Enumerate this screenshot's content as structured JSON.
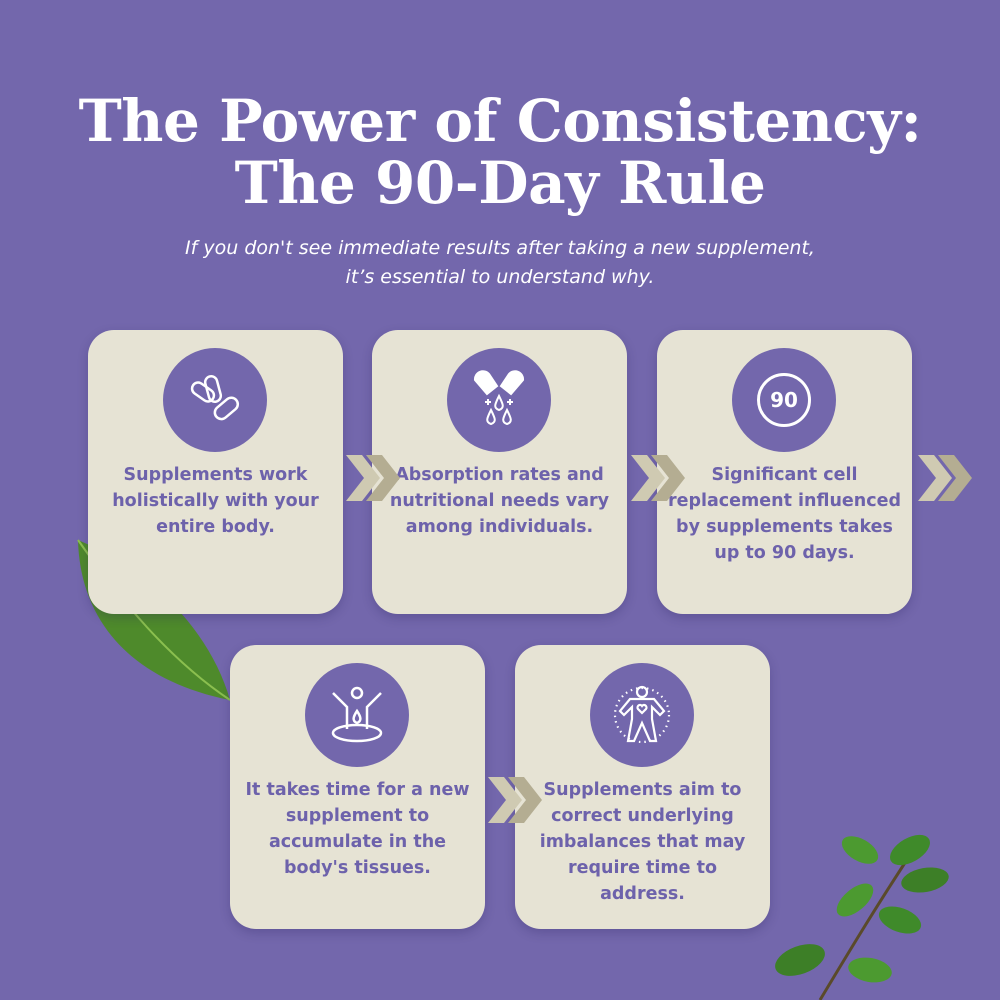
{
  "title": {
    "line1": "The Power of Consistency:",
    "line2": "The 90-Day Rule"
  },
  "subtitle": {
    "line1": "If you don't see immediate results after taking a new supplement,",
    "line2": "it’s essential to understand why."
  },
  "colors": {
    "background": "#7367ac",
    "card": "#e6e3d4",
    "card_text": "#6d62ab",
    "chevron_light": "#cfcab2",
    "chevron_dark": "#b4ad92",
    "leaf": "#4f8a2c"
  },
  "cards": [
    {
      "icon": "capsules-icon",
      "text": "Supplements work holistically with your entire body."
    },
    {
      "icon": "capsule-drops-icon",
      "text": "Absorption rates and nutritional needs vary among individuals."
    },
    {
      "icon": "ninety-badge-icon",
      "icon_text": "90",
      "text": "Significant cell replacement influenced by supplements takes up to 90 days."
    },
    {
      "icon": "body-absorb-icon",
      "text": "It takes time for a new supplement to accumulate in the body's tissues."
    },
    {
      "icon": "body-heart-icon",
      "text": "Supplements aim to correct underlying imbalances that may require time to address."
    }
  ]
}
